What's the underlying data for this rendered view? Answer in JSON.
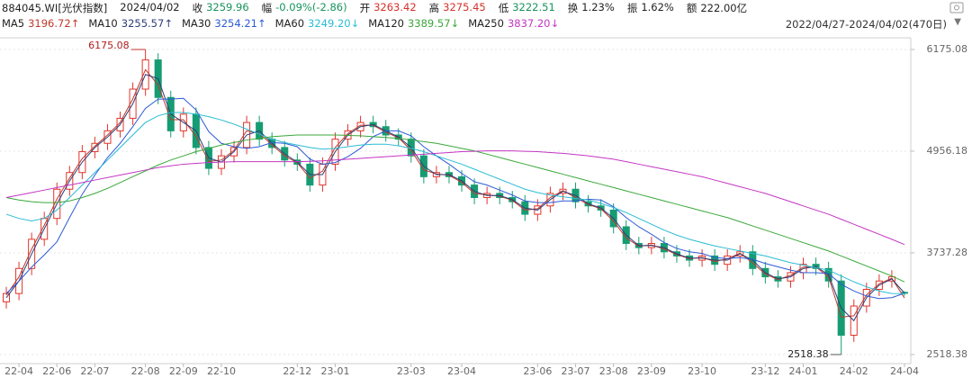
{
  "chart_data": {
    "type": "candlestick",
    "header": {
      "code": "884045.WI[光伏指数]",
      "date": "2024/04/02",
      "close_label": "收",
      "change_label": "幅",
      "change": "-0.09%(-2.86)",
      "open_label": "开",
      "high_label": "高",
      "low_label": "低",
      "turnover_label": "换",
      "turnover": "1.23%",
      "amplitude_label": "振",
      "amplitude": "1.62%",
      "amount_label": "额",
      "amount": "222.00亿",
      "range": "2022/04/27-2024/04/02(470日)"
    },
    "categories": [
      null,
      "22-04",
      null,
      null,
      "22-06",
      null,
      null,
      "22-07",
      null,
      null,
      null,
      "22-08",
      null,
      null,
      "22-09",
      null,
      null,
      "22-10",
      null,
      null,
      null,
      null,
      null,
      "22-12",
      null,
      null,
      "23-01",
      null,
      null,
      null,
      null,
      null,
      "23-03",
      null,
      null,
      null,
      "23-04",
      null,
      null,
      null,
      null,
      null,
      "23-06",
      null,
      null,
      "23-07",
      null,
      null,
      "23-08",
      null,
      null,
      "23-09",
      null,
      null,
      null,
      "23-10",
      null,
      null,
      null,
      null,
      "23-12",
      null,
      null,
      "24-01",
      null,
      null,
      null,
      "24-02",
      null,
      null,
      null,
      "24-04"
    ],
    "open": [
      3150,
      3250,
      3550,
      3900,
      4150,
      4500,
      4700,
      4950,
      5050,
      5200,
      5350,
      5700,
      6050,
      5600,
      5200,
      5400,
      5000,
      4750,
      4900,
      5000,
      5300,
      5100,
      5000,
      4850,
      4800,
      4550,
      4800,
      5100,
      5200,
      5300,
      5250,
      5150,
      5100,
      4900,
      4650,
      4700,
      4650,
      4550,
      4400,
      4450,
      4400,
      4350,
      4200,
      4300,
      4450,
      4500,
      4350,
      4300,
      4250,
      4050,
      3850,
      3800,
      3850,
      3750,
      3700,
      3650,
      3700,
      3600,
      3700,
      3750,
      3550,
      3450,
      3400,
      3500,
      3600,
      3550,
      3400,
      2750,
      3100,
      3300,
      3400,
      3263.42
    ],
    "high": [
      3330,
      3630,
      3980,
      4230,
      4580,
      4780,
      5030,
      5130,
      5280,
      5430,
      5780,
      6175.08,
      6130,
      5680,
      5480,
      5480,
      5080,
      4980,
      5080,
      5380,
      5380,
      5180,
      5080,
      4930,
      4880,
      4880,
      5180,
      5280,
      5380,
      5380,
      5330,
      5230,
      5180,
      4980,
      4780,
      4780,
      4730,
      4630,
      4530,
      4530,
      4480,
      4430,
      4380,
      4530,
      4580,
      4580,
      4430,
      4380,
      4330,
      4130,
      3930,
      3930,
      3930,
      3830,
      3780,
      3780,
      3780,
      3780,
      3830,
      3830,
      3630,
      3530,
      3580,
      3680,
      3680,
      3630,
      3480,
      3180,
      3380,
      3480,
      3530,
      3275.45
    ],
    "low": [
      3070,
      3170,
      3470,
      3820,
      4070,
      4420,
      4620,
      4870,
      4970,
      5120,
      5270,
      5620,
      5520,
      5120,
      5120,
      4920,
      4670,
      4670,
      4820,
      4920,
      5020,
      4920,
      4770,
      4720,
      4470,
      4470,
      4720,
      5020,
      5120,
      5170,
      5070,
      5020,
      4820,
      4570,
      4570,
      4570,
      4470,
      4320,
      4320,
      4320,
      4270,
      4120,
      4120,
      4220,
      4370,
      4270,
      4220,
      4170,
      3970,
      3770,
      3720,
      3720,
      3670,
      3620,
      3570,
      3570,
      3520,
      3520,
      3620,
      3470,
      3370,
      3320,
      3320,
      3420,
      3470,
      3320,
      2518.38,
      2670,
      3020,
      3220,
      3320,
      3222.51
    ],
    "close": [
      3250,
      3550,
      3900,
      4150,
      4500,
      4700,
      4950,
      5050,
      5200,
      5350,
      5700,
      6050,
      5600,
      5200,
      5400,
      5000,
      4750,
      4900,
      5000,
      5300,
      5100,
      5000,
      4850,
      4800,
      4550,
      4800,
      5100,
      5200,
      5300,
      5250,
      5150,
      5100,
      4900,
      4650,
      4700,
      4650,
      4550,
      4400,
      4450,
      4400,
      4350,
      4200,
      4300,
      4450,
      4500,
      4350,
      4300,
      4250,
      4050,
      3850,
      3800,
      3850,
      3750,
      3700,
      3650,
      3700,
      3600,
      3700,
      3750,
      3550,
      3450,
      3400,
      3500,
      3600,
      3550,
      3400,
      2750,
      3100,
      3300,
      3400,
      3450,
      3259.96
    ],
    "up_color": "#e0352b",
    "down_color": "#169c72",
    "ylim": [
      2410,
      6315
    ],
    "yticks": [
      2518.38,
      3737.28,
      4956.18,
      6175.08
    ],
    "grid": true,
    "series": [
      {
        "name": "MA5",
        "color": "#c0392b",
        "legend_value": "3196.72",
        "trend": "↑",
        "values": [
          3230,
          3450,
          3783,
          4067,
          4383,
          4633,
          4867,
          5017,
          5150,
          5300,
          5583,
          5933,
          5750,
          5333,
          5333,
          5133,
          4833,
          4850,
          4967,
          5200,
          5167,
          5033,
          4900,
          4817,
          4633,
          4717,
          5000,
          5167,
          5267,
          5267,
          5183,
          5117,
          4967,
          4733,
          4683,
          4667,
          4583,
          4450,
          4433,
          4417,
          4367,
          4250,
          4267,
          4400,
          4483,
          4400,
          4317,
          4267,
          4117,
          3917,
          3817,
          3833,
          3783,
          3717,
          3667,
          3683,
          3633,
          3667,
          3733,
          3617,
          3483,
          3417,
          3467,
          3567,
          3567,
          3450,
          2967,
          2983,
          3233,
          3367,
          3433,
          3196.72
        ]
      },
      {
        "name": "MA10",
        "color": "#2c3e7a",
        "legend_value": "3255.57",
        "trend": "↑",
        "values": [
          3200,
          3400,
          3725,
          4025,
          4325,
          4600,
          4825,
          5000,
          5125,
          5275,
          5525,
          5875,
          5825,
          5400,
          5300,
          5200,
          4875,
          4825,
          4950,
          5150,
          5200,
          5050,
          4925,
          4825,
          4675,
          4675,
          4950,
          5150,
          5250,
          5275,
          5200,
          5125,
          5000,
          4775,
          4675,
          4675,
          4600,
          4475,
          4425,
          4425,
          4375,
          4275,
          4250,
          4375,
          4475,
          4425,
          4325,
          4275,
          4150,
          3950,
          3825,
          3825,
          3800,
          3725,
          3675,
          3675,
          3650,
          3650,
          3725,
          3650,
          3500,
          3425,
          3450,
          3550,
          3575,
          3475,
          3075,
          2925,
          3200,
          3350,
          3425,
          3255.57
        ]
      },
      {
        "name": "MA30",
        "color": "#2d5bd7",
        "legend_value": "3254.21",
        "trend": "↑",
        "values": [
          3250,
          3400,
          3567,
          3713,
          3870,
          4160,
          4440,
          4670,
          4880,
          5050,
          5250,
          5470,
          5580,
          5580,
          5590,
          5450,
          5190,
          5050,
          5010,
          4990,
          5010,
          5060,
          5050,
          5010,
          4860,
          4800,
          4820,
          4890,
          4990,
          5130,
          5200,
          5200,
          5140,
          5010,
          4900,
          4800,
          4690,
          4590,
          4550,
          4490,
          4430,
          4360,
          4340,
          4340,
          4360,
          4360,
          4380,
          4370,
          4290,
          4160,
          4050,
          3960,
          3860,
          3790,
          3750,
          3730,
          3680,
          3670,
          3680,
          3660,
          3610,
          3570,
          3530,
          3500,
          3500,
          3490,
          3360,
          3280,
          3220,
          3190,
          3200,
          3254.21
        ]
      },
      {
        "name": "MA60",
        "color": "#2bbcd4",
        "legend_value": "3249.20",
        "trend": "↓",
        "values": [
          4200,
          4150,
          4120,
          4150,
          4250,
          4400,
          4550,
          4700,
          4850,
          5000,
          5150,
          5300,
          5380,
          5420,
          5420,
          5400,
          5370,
          5330,
          5280,
          5220,
          5160,
          5100,
          5060,
          5030,
          5000,
          4980,
          4990,
          5010,
          5030,
          5040,
          5040,
          5020,
          4990,
          4950,
          4900,
          4850,
          4800,
          4740,
          4680,
          4620,
          4560,
          4500,
          4460,
          4430,
          4410,
          4390,
          4370,
          4330,
          4280,
          4220,
          4150,
          4080,
          4010,
          3950,
          3900,
          3860,
          3820,
          3790,
          3760,
          3730,
          3700,
          3660,
          3620,
          3590,
          3560,
          3530,
          3460,
          3390,
          3330,
          3280,
          3250,
          3249.2
        ]
      },
      {
        "name": "MA120",
        "color": "#3aa83a",
        "legend_value": "3389.57",
        "trend": "↓",
        "values": [
          4400,
          4370,
          4350,
          4340,
          4340,
          4360,
          4400,
          4450,
          4510,
          4580,
          4650,
          4720,
          4790,
          4850,
          4900,
          4950,
          4990,
          5030,
          5060,
          5090,
          5110,
          5130,
          5140,
          5150,
          5150,
          5150,
          5150,
          5145,
          5140,
          5130,
          5120,
          5110,
          5090,
          5070,
          5050,
          5020,
          4990,
          4960,
          4920,
          4880,
          4840,
          4800,
          4760,
          4720,
          4680,
          4640,
          4600,
          4560,
          4520,
          4480,
          4440,
          4400,
          4360,
          4320,
          4280,
          4240,
          4200,
          4160,
          4110,
          4060,
          4010,
          3960,
          3910,
          3860,
          3810,
          3760,
          3700,
          3640,
          3580,
          3520,
          3460,
          3389.57
        ]
      },
      {
        "name": "MA250",
        "color": "#c436c4",
        "legend_value": "3837.20",
        "trend": "↓",
        "values": [
          4400,
          4430,
          4460,
          4490,
          4520,
          4550,
          4580,
          4610,
          4640,
          4670,
          4700,
          4730,
          4760,
          4780,
          4800,
          4810,
          4820,
          4825,
          4830,
          4830,
          4830,
          4830,
          4830,
          4830,
          4835,
          4840,
          4850,
          4860,
          4870,
          4880,
          4890,
          4900,
          4910,
          4920,
          4930,
          4940,
          4950,
          4955,
          4960,
          4960,
          4960,
          4955,
          4950,
          4940,
          4930,
          4915,
          4900,
          4880,
          4860,
          4830,
          4800,
          4770,
          4740,
          4710,
          4680,
          4650,
          4610,
          4570,
          4530,
          4490,
          4450,
          4400,
          4350,
          4300,
          4250,
          4200,
          4140,
          4080,
          4020,
          3960,
          3900,
          3837.2
        ]
      }
    ]
  }
}
